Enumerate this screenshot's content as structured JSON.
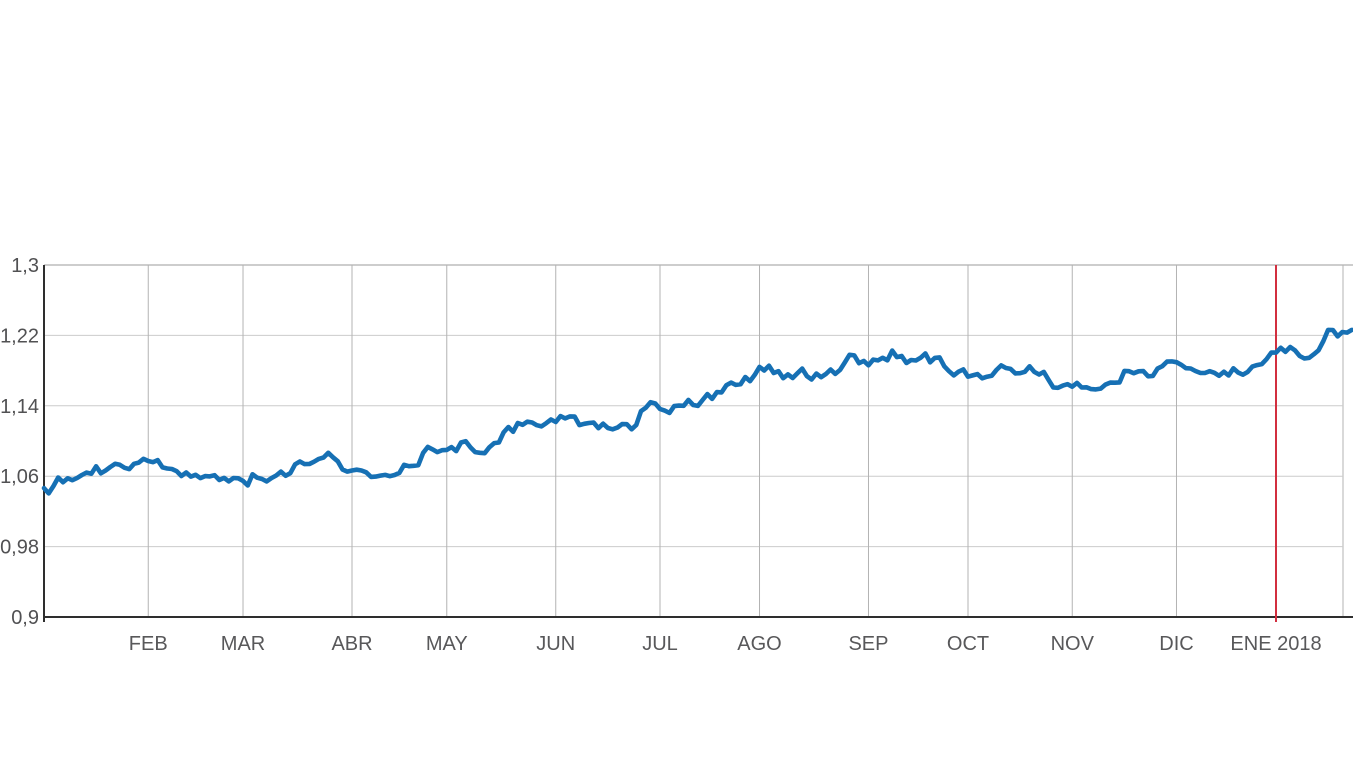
{
  "chart_data": {
    "type": "line",
    "title": "",
    "y_tick_labels": [
      "1,3",
      "1,22",
      "1,14",
      "1,06",
      "0,98",
      "0,9"
    ],
    "y_tick_values": [
      1.3,
      1.22,
      1.14,
      1.06,
      0.98,
      0.9
    ],
    "ylim": [
      0.9,
      1.3
    ],
    "x_tick_labels": [
      "FEB",
      "MAR",
      "ABR",
      "MAY",
      "JUN",
      "JUL",
      "AGO",
      "SEP",
      "OCT",
      "NOV",
      "DIC",
      "ENE 2018"
    ],
    "x_tick_indices": [
      22,
      42,
      65,
      85,
      108,
      130,
      151,
      174,
      195,
      217,
      239,
      260
    ],
    "marker_line_index": 260,
    "grid": true,
    "legend": "none",
    "colors": {
      "line": "#1670b4",
      "marker_line": "#d22f3f",
      "h_grid": "#cccccc",
      "v_grid": "#b3b3b3",
      "border": "#9b9b9b",
      "axis": "#2e2e2e",
      "y_label": "#515153",
      "x_label": "#58585a",
      "background": "#ffffff"
    },
    "values": [
      1.0465,
      1.0405,
      1.0489,
      1.0585,
      1.0532,
      1.0576,
      1.0555,
      1.0581,
      1.0614,
      1.0641,
      1.0628,
      1.0713,
      1.0633,
      1.0665,
      1.0705,
      1.0741,
      1.073,
      1.0695,
      1.0681,
      1.0741,
      1.0755,
      1.0798,
      1.0773,
      1.0759,
      1.0783,
      1.07,
      1.0688,
      1.0682,
      1.0657,
      1.0602,
      1.0642,
      1.0596,
      1.0616,
      1.0578,
      1.0601,
      1.0598,
      1.0611,
      1.0557,
      1.0581,
      1.0541,
      1.058,
      1.0576,
      1.0547,
      1.0495,
      1.0622,
      1.0583,
      1.0568,
      1.0541,
      1.0578,
      1.0608,
      1.0652,
      1.0605,
      1.0635,
      1.0735,
      1.0767,
      1.0737,
      1.0739,
      1.0765,
      1.0797,
      1.0812,
      1.0866,
      1.0815,
      1.0769,
      1.0676,
      1.0652,
      1.0665,
      1.0674,
      1.0665,
      1.0644,
      1.0592,
      1.0595,
      1.0607,
      1.0615,
      1.06,
      1.0614,
      1.0637,
      1.0729,
      1.0714,
      1.0718,
      1.0725,
      1.0865,
      1.0933,
      1.0905,
      1.0874,
      1.0895,
      1.0899,
      1.0931,
      1.0885,
      1.0983,
      1.0998,
      1.0927,
      1.0874,
      1.0866,
      1.0861,
      1.093,
      1.0976,
      1.0983,
      1.1098,
      1.1159,
      1.1104,
      1.1205,
      1.1184,
      1.1219,
      1.121,
      1.1179,
      1.1166,
      1.1203,
      1.1244,
      1.1216,
      1.1283,
      1.1257,
      1.1279,
      1.1277,
      1.1181,
      1.1196,
      1.1205,
      1.1209,
      1.1146,
      1.1197,
      1.1148,
      1.1133,
      1.1152,
      1.1192,
      1.1191,
      1.1133,
      1.1183,
      1.134,
      1.1378,
      1.1441,
      1.1426,
      1.1364,
      1.1346,
      1.1319,
      1.1397,
      1.1402,
      1.14,
      1.1467,
      1.1409,
      1.1399,
      1.1466,
      1.1533,
      1.1478,
      1.1556,
      1.1552,
      1.1633,
      1.1664,
      1.1638,
      1.1646,
      1.1727,
      1.1679,
      1.1752,
      1.1842,
      1.1801,
      1.1856,
      1.1773,
      1.1793,
      1.1714,
      1.1757,
      1.1716,
      1.1769,
      1.1823,
      1.1737,
      1.1699,
      1.1767,
      1.1725,
      1.176,
      1.1812,
      1.1762,
      1.1808,
      1.1892,
      1.1979,
      1.1973,
      1.1884,
      1.191,
      1.186,
      1.1925,
      1.1916,
      1.1946,
      1.1917,
      1.2027,
      1.1953,
      1.1966,
      1.1886,
      1.1921,
      1.1915,
      1.1945,
      1.1996,
      1.1894,
      1.1944,
      1.195,
      1.1849,
      1.1793,
      1.1745,
      1.1787,
      1.1814,
      1.1731,
      1.1745,
      1.176,
      1.1713,
      1.1731,
      1.1741,
      1.1807,
      1.1859,
      1.1829,
      1.1819,
      1.1768,
      1.1771,
      1.1786,
      1.1849,
      1.1785,
      1.1756,
      1.1785,
      1.1694,
      1.1608,
      1.1605,
      1.1629,
      1.1646,
      1.1617,
      1.166,
      1.1608,
      1.161,
      1.159,
      1.1586,
      1.1595,
      1.1641,
      1.1664,
      1.1662,
      1.1666,
      1.1797,
      1.1793,
      1.1771,
      1.1792,
      1.1794,
      1.1735,
      1.1739,
      1.1823,
      1.185,
      1.1902,
      1.1904,
      1.1896,
      1.1866,
      1.1827,
      1.1824,
      1.1796,
      1.1774,
      1.1773,
      1.1793,
      1.1775,
      1.1741,
      1.1788,
      1.1744,
      1.1826,
      1.1778,
      1.1753,
      1.1784,
      1.1845,
      1.1862,
      1.1874,
      1.193,
      1.2005,
      1.2005,
      1.2059,
      1.2014,
      1.2068,
      1.203,
      1.1966,
      1.1937,
      1.1946,
      1.1986,
      1.2032,
      1.2136,
      1.2262,
      1.2261,
      1.2189,
      1.2239,
      1.2232,
      1.2262
    ]
  }
}
